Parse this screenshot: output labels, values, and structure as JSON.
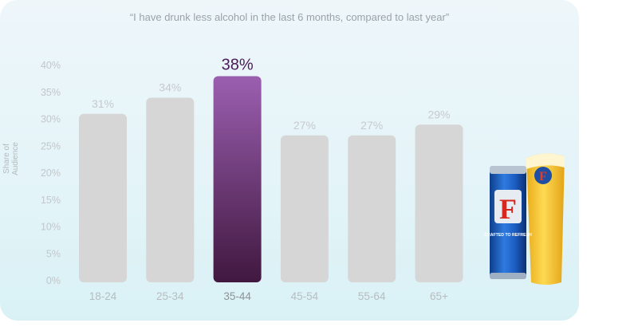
{
  "chart_data": {
    "type": "bar",
    "title": "“I have drunk less alcohol in the last 6 months, compared to last year”",
    "ylabel": "Share of Audience",
    "xlabel": "",
    "categories": [
      "18-24",
      "25-34",
      "35-44",
      "45-54",
      "55-64",
      "65+"
    ],
    "values": [
      31,
      34,
      38,
      27,
      27,
      29
    ],
    "value_labels": [
      "31%",
      "34%",
      "38%",
      "27%",
      "27%",
      "29%"
    ],
    "highlight_index": 2,
    "ylim": [
      0,
      40
    ],
    "yticks": [
      "0%",
      "5%",
      "10%",
      "15%",
      "20%",
      "25%",
      "30%",
      "35%",
      "40%"
    ],
    "grid": false,
    "colors": {
      "bar": "#d6d6d6",
      "highlight_top": "#9b5fb0",
      "highlight_bottom": "#40183f",
      "highlight_label": "#4a1b5a"
    }
  },
  "product": {
    "can_logo": "F",
    "can_text": "CRAFTED TO REFRESH",
    "glass_logo": "F",
    "icons": [
      "beer-can-icon",
      "beer-glass-icon"
    ]
  }
}
